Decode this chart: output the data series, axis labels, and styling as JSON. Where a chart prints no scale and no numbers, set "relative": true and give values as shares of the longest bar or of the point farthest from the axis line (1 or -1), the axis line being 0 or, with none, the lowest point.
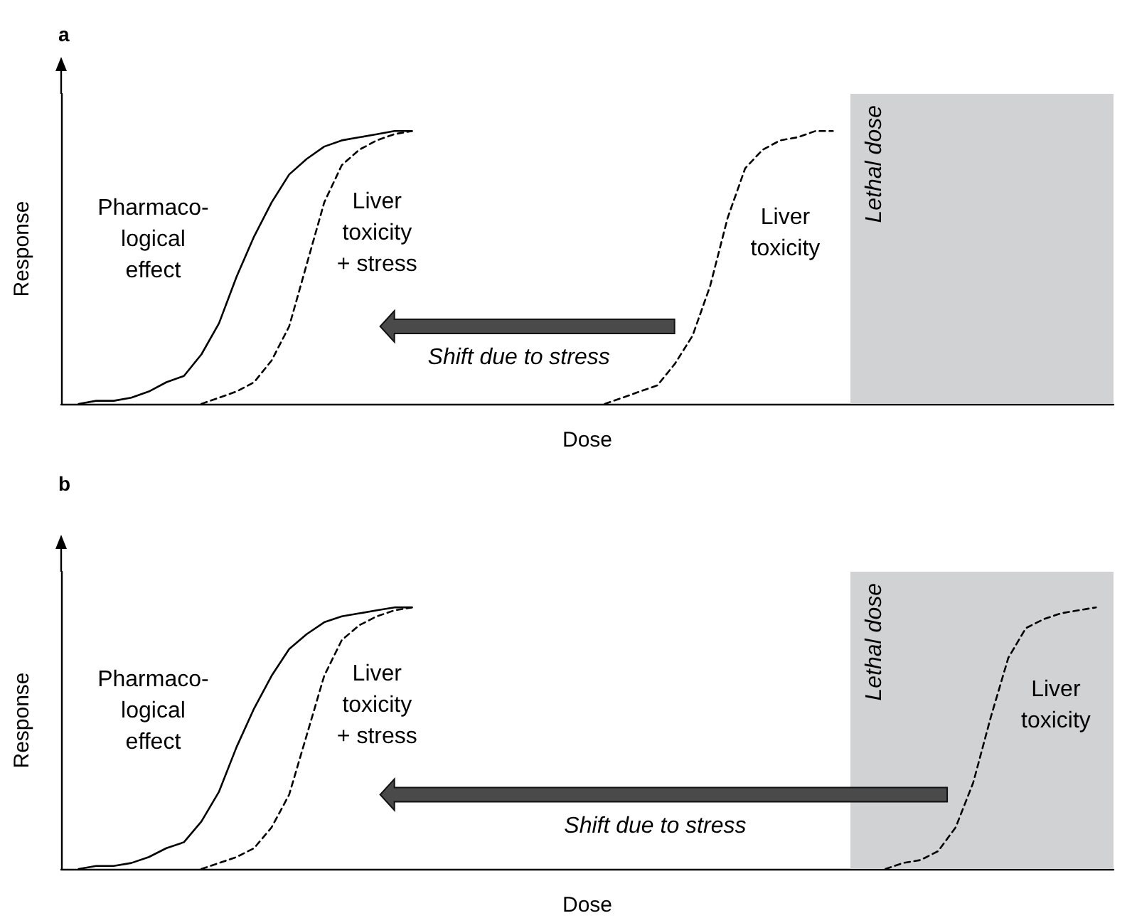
{
  "chart_data": [
    {
      "type": "line",
      "title": "a",
      "xlabel": "Dose",
      "ylabel": "Response",
      "relative": true,
      "grid": false,
      "legend": false,
      "marker": "none",
      "categories": [
        null,
        null,
        null,
        null,
        null,
        null,
        null,
        null,
        null,
        null,
        null,
        null,
        null,
        null,
        null,
        null,
        null,
        null,
        null,
        null,
        null,
        null,
        null,
        null,
        null,
        null,
        null,
        null,
        null,
        null,
        null,
        null,
        null,
        null,
        null,
        null,
        null,
        null,
        null,
        null,
        null,
        null,
        null,
        null,
        null,
        null,
        null,
        null,
        null,
        null,
        null,
        null,
        null,
        null,
        null,
        null,
        null,
        null,
        null,
        null,
        null
      ],
      "series": [
        {
          "name": "Lethal dose",
          "type": "area",
          "color": "#d1d2d4",
          "values": [
            null,
            null,
            null,
            null,
            null,
            null,
            null,
            null,
            null,
            null,
            null,
            null,
            null,
            null,
            null,
            null,
            null,
            null,
            null,
            null,
            null,
            null,
            null,
            null,
            null,
            null,
            null,
            null,
            null,
            null,
            null,
            null,
            null,
            null,
            null,
            null,
            null,
            null,
            null,
            null,
            null,
            null,
            null,
            null,
            null,
            1,
            1,
            1,
            1,
            1,
            1,
            1,
            1,
            1,
            1,
            1,
            1,
            1,
            1,
            1,
            1
          ]
        },
        {
          "name": "Pharmaco-\nlogical\neffect",
          "color": "#000000",
          "line_style": "solid",
          "values": [
            null,
            0,
            0.01,
            0.01,
            0.02,
            0.04,
            0.07,
            0.09,
            0.16,
            0.26,
            0.41,
            0.54,
            0.65,
            0.74,
            0.79,
            0.83,
            0.85,
            0.86,
            0.87,
            0.88,
            0.88,
            null,
            null,
            null,
            null,
            null,
            null,
            null,
            null,
            null,
            null,
            null,
            null,
            null,
            null,
            null,
            null,
            null,
            null,
            null,
            null,
            null,
            null,
            null,
            null,
            null,
            null,
            null,
            null,
            null,
            null,
            null,
            null,
            null,
            null,
            null,
            null,
            null,
            null,
            null,
            null
          ]
        },
        {
          "name": "Liver\ntoxicity\n+ stress",
          "color": "#000000",
          "line_style": "dashed",
          "values": [
            null,
            null,
            null,
            null,
            null,
            null,
            null,
            null,
            0,
            0.02,
            0.04,
            0.07,
            0.14,
            0.25,
            0.45,
            0.65,
            0.77,
            0.82,
            0.85,
            0.87,
            0.88,
            null,
            null,
            null,
            null,
            null,
            null,
            null,
            null,
            null,
            null,
            null,
            null,
            null,
            null,
            null,
            null,
            null,
            null,
            null,
            null,
            null,
            null,
            null,
            null,
            null,
            null,
            null,
            null,
            null,
            null,
            null,
            null,
            null,
            null,
            null,
            null,
            null,
            null,
            null,
            null
          ]
        },
        {
          "name": "Liver\ntoxicity",
          "color": "#000000",
          "line_style": "dashed",
          "values": [
            null,
            null,
            null,
            null,
            null,
            null,
            null,
            null,
            null,
            null,
            null,
            null,
            null,
            null,
            null,
            null,
            null,
            null,
            null,
            null,
            null,
            null,
            null,
            null,
            null,
            null,
            null,
            null,
            null,
            null,
            null,
            0,
            0.02,
            0.04,
            0.06,
            0.13,
            0.22,
            0.38,
            0.6,
            0.76,
            0.82,
            0.85,
            0.86,
            0.88,
            0.88,
            null,
            null,
            null,
            null,
            null,
            null,
            null,
            null,
            null,
            null,
            null,
            null,
            null,
            null,
            null,
            null
          ]
        }
      ],
      "annotations": [
        "Shift due to stress"
      ]
    },
    {
      "type": "line",
      "title": "b",
      "xlabel": "Dose",
      "ylabel": "Response",
      "relative": true,
      "grid": false,
      "legend": false,
      "marker": "none",
      "categories": [
        null,
        null,
        null,
        null,
        null,
        null,
        null,
        null,
        null,
        null,
        null,
        null,
        null,
        null,
        null,
        null,
        null,
        null,
        null,
        null,
        null,
        null,
        null,
        null,
        null,
        null,
        null,
        null,
        null,
        null,
        null,
        null,
        null,
        null,
        null,
        null,
        null,
        null,
        null,
        null,
        null,
        null,
        null,
        null,
        null,
        null,
        null,
        null,
        null,
        null,
        null,
        null,
        null,
        null,
        null,
        null,
        null,
        null,
        null,
        null,
        null
      ],
      "series": [
        {
          "name": "Lethal dose",
          "type": "area",
          "color": "#d1d2d4",
          "values": [
            null,
            null,
            null,
            null,
            null,
            null,
            null,
            null,
            null,
            null,
            null,
            null,
            null,
            null,
            null,
            null,
            null,
            null,
            null,
            null,
            null,
            null,
            null,
            null,
            null,
            null,
            null,
            null,
            null,
            null,
            null,
            null,
            null,
            null,
            null,
            null,
            null,
            null,
            null,
            null,
            null,
            null,
            null,
            null,
            null,
            1,
            1,
            1,
            1,
            1,
            1,
            1,
            1,
            1,
            1,
            1,
            1,
            1,
            1,
            1,
            1
          ]
        },
        {
          "name": "Pharmaco-\nlogical\neffect",
          "color": "#000000",
          "line_style": "solid",
          "values": [
            null,
            0,
            0.01,
            0.01,
            0.02,
            0.04,
            0.07,
            0.09,
            0.16,
            0.26,
            0.41,
            0.54,
            0.65,
            0.74,
            0.79,
            0.83,
            0.85,
            0.86,
            0.87,
            0.88,
            0.88,
            null,
            null,
            null,
            null,
            null,
            null,
            null,
            null,
            null,
            null,
            null,
            null,
            null,
            null,
            null,
            null,
            null,
            null,
            null,
            null,
            null,
            null,
            null,
            null,
            null,
            null,
            null,
            null,
            null,
            null,
            null,
            null,
            null,
            null,
            null,
            null,
            null,
            null,
            null,
            null
          ]
        },
        {
          "name": "Liver\ntoxicity\n+ stress",
          "color": "#000000",
          "line_style": "dashed",
          "values": [
            null,
            null,
            null,
            null,
            null,
            null,
            null,
            null,
            0,
            0.02,
            0.04,
            0.07,
            0.14,
            0.25,
            0.45,
            0.65,
            0.77,
            0.82,
            0.85,
            0.87,
            0.88,
            null,
            null,
            null,
            null,
            null,
            null,
            null,
            null,
            null,
            null,
            null,
            null,
            null,
            null,
            null,
            null,
            null,
            null,
            null,
            null,
            null,
            null,
            null,
            null,
            null,
            null,
            null,
            null,
            null,
            null,
            null,
            null,
            null,
            null,
            null,
            null,
            null,
            null,
            null,
            null
          ]
        },
        {
          "name": "Liver\ntoxicity",
          "color": "#000000",
          "line_style": "dashed",
          "values": [
            null,
            null,
            null,
            null,
            null,
            null,
            null,
            null,
            null,
            null,
            null,
            null,
            null,
            null,
            null,
            null,
            null,
            null,
            null,
            null,
            null,
            null,
            null,
            null,
            null,
            null,
            null,
            null,
            null,
            null,
            null,
            null,
            null,
            null,
            null,
            null,
            null,
            null,
            null,
            null,
            null,
            null,
            null,
            null,
            null,
            null,
            null,
            0,
            0.02,
            0.03,
            0.06,
            0.14,
            0.29,
            0.51,
            0.71,
            0.81,
            0.84,
            0.86,
            0.87,
            0.88,
            null
          ]
        }
      ],
      "annotations": [
        "Shift due to stress"
      ]
    }
  ]
}
